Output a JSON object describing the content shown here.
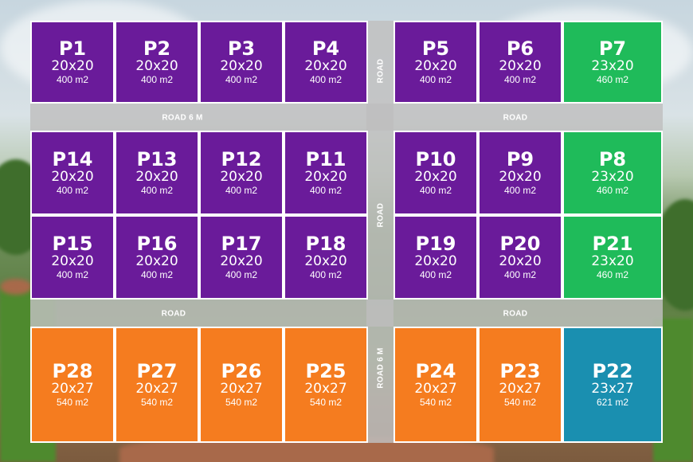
{
  "colors": {
    "purple": "#6a1b9a",
    "green": "#1fbb5a",
    "orange": "#f57c1f",
    "blue": "#1a8fb0"
  },
  "roads": {
    "road_6m_horizontal": "ROAD 6 M",
    "road_top_right": "ROAD",
    "road_bottom_left": "ROAD",
    "road_bottom_right": "ROAD",
    "road_vertical_top": "ROAD",
    "road_vertical_middle": "ROAD",
    "road_6m_vertical": "ROAD 6 M"
  },
  "plots": [
    {
      "id": "P1",
      "dims": "20x20",
      "area": "400 m2",
      "color": "purple"
    },
    {
      "id": "P2",
      "dims": "20x20",
      "area": "400 m2",
      "color": "purple"
    },
    {
      "id": "P3",
      "dims": "20x20",
      "area": "400 m2",
      "color": "purple"
    },
    {
      "id": "P4",
      "dims": "20x20",
      "area": "400 m2",
      "color": "purple"
    },
    {
      "id": "P5",
      "dims": "20x20",
      "area": "400 m2",
      "color": "purple"
    },
    {
      "id": "P6",
      "dims": "20x20",
      "area": "400 m2",
      "color": "purple"
    },
    {
      "id": "P7",
      "dims": "23x20",
      "area": "460 m2",
      "color": "green"
    },
    {
      "id": "P14",
      "dims": "20x20",
      "area": "400 m2",
      "color": "purple"
    },
    {
      "id": "P13",
      "dims": "20x20",
      "area": "400 m2",
      "color": "purple"
    },
    {
      "id": "P12",
      "dims": "20x20",
      "area": "400 m2",
      "color": "purple"
    },
    {
      "id": "P11",
      "dims": "20x20",
      "area": "400 m2",
      "color": "purple"
    },
    {
      "id": "P10",
      "dims": "20x20",
      "area": "400 m2",
      "color": "purple"
    },
    {
      "id": "P9",
      "dims": "20x20",
      "area": "400 m2",
      "color": "purple"
    },
    {
      "id": "P8",
      "dims": "23x20",
      "area": "460 m2",
      "color": "green"
    },
    {
      "id": "P15",
      "dims": "20x20",
      "area": "400 m2",
      "color": "purple"
    },
    {
      "id": "P16",
      "dims": "20x20",
      "area": "400 m2",
      "color": "purple"
    },
    {
      "id": "P17",
      "dims": "20x20",
      "area": "400 m2",
      "color": "purple"
    },
    {
      "id": "P18",
      "dims": "20x20",
      "area": "400 m2",
      "color": "purple"
    },
    {
      "id": "P19",
      "dims": "20x20",
      "area": "400 m2",
      "color": "purple"
    },
    {
      "id": "P20",
      "dims": "20x20",
      "area": "400 m2",
      "color": "purple"
    },
    {
      "id": "P21",
      "dims": "23x20",
      "area": "460 m2",
      "color": "green"
    },
    {
      "id": "P28",
      "dims": "20x27",
      "area": "540 m2",
      "color": "orange"
    },
    {
      "id": "P27",
      "dims": "20x27",
      "area": "540 m2",
      "color": "orange"
    },
    {
      "id": "P26",
      "dims": "20x27",
      "area": "540 m2",
      "color": "orange"
    },
    {
      "id": "P25",
      "dims": "20x27",
      "area": "540 m2",
      "color": "orange"
    },
    {
      "id": "P24",
      "dims": "20x27",
      "area": "540 m2",
      "color": "orange"
    },
    {
      "id": "P23",
      "dims": "20x27",
      "area": "540 m2",
      "color": "orange"
    },
    {
      "id": "P22",
      "dims": "23x27",
      "area": "621 m2",
      "color": "blue"
    }
  ]
}
